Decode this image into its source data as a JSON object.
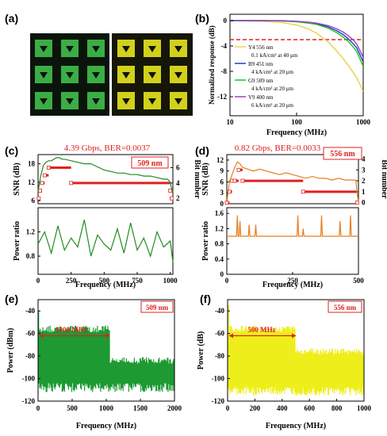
{
  "chart_data": [
    {
      "panel": "(a)",
      "type": "image",
      "left_image_color": "#3fbf4a",
      "right_image_color": "#e6e61e"
    },
    {
      "panel": "(b)",
      "type": "line",
      "xlabel": "Frequency (MHz)",
      "ylabel": "Normalized response (dB)",
      "xscale": "log",
      "xlim": [
        10,
        1000
      ],
      "ylim": [
        -15,
        1
      ],
      "x_ticks": [
        10,
        100,
        1000
      ],
      "y_ticks": [
        0,
        -4,
        -8,
        -12
      ],
      "reference_line_db": -3,
      "reference_color": "#e02020",
      "x": [
        10,
        30,
        60,
        100,
        150,
        200,
        300,
        400,
        500,
        600,
        700,
        800,
        1000
      ],
      "series": [
        {
          "name": "Y4 556 nm",
          "sub": "0.1 kA/cm² at 40 μm",
          "color": "#e8d24a",
          "values": [
            0,
            -0.1,
            -0.3,
            -0.7,
            -1.3,
            -2.0,
            -3.4,
            -4.8,
            -6.0,
            -7.1,
            -8.1,
            -9.0,
            -11.2
          ]
        },
        {
          "name": "B9 451 nm",
          "sub": "4 kA/cm² at 20 μm",
          "color": "#1f3fbf",
          "values": [
            0,
            0,
            -0.05,
            -0.15,
            -0.3,
            -0.5,
            -1.0,
            -1.6,
            -2.2,
            -2.9,
            -3.6,
            -4.3,
            -6.5
          ]
        },
        {
          "name": "G9 509 nm",
          "sub": "4 kA/cm² at 20 μm",
          "color": "#22c022",
          "values": [
            0,
            0,
            -0.05,
            -0.2,
            -0.4,
            -0.6,
            -1.2,
            -1.9,
            -2.6,
            -3.3,
            -4.1,
            -4.9,
            -7.2
          ]
        },
        {
          "name": "V9 400 nm",
          "sub": "6 kA/cm² at 20 μm",
          "color": "#9a3fd0",
          "values": [
            0,
            0,
            0,
            -0.1,
            -0.25,
            -0.4,
            -0.8,
            -1.3,
            -1.8,
            -2.4,
            -3.0,
            -3.7,
            -5.8
          ]
        }
      ]
    },
    {
      "panel": "(c)",
      "type": "line",
      "title": "4.39 Gbps, BER=0.0037",
      "badge": "509 nm",
      "color": "#228B22",
      "xlabel": "Frequency (MHz)",
      "ylabel_top": "SNR (dB)",
      "ylabel_right": "Bit number",
      "ylabel_bottom": "Power ratio",
      "xlim": [
        0,
        1020
      ],
      "snr_ylim": [
        5,
        21
      ],
      "bit_ylim": [
        1.3,
        7.7
      ],
      "power_ylim": [
        0.5,
        1.6
      ],
      "x_ticks": [
        0,
        250,
        500,
        750,
        1000
      ],
      "snr_ticks": [
        6,
        12,
        18
      ],
      "bit_ticks": [
        2,
        4,
        6
      ],
      "power_ticks": [
        0.8,
        1.2
      ],
      "snr_x": [
        0,
        20,
        40,
        60,
        80,
        100,
        120,
        140,
        160,
        180,
        200,
        250,
        300,
        350,
        400,
        450,
        500,
        550,
        600,
        650,
        700,
        750,
        800,
        850,
        900,
        950,
        980,
        1000,
        1010,
        1020
      ],
      "snr": [
        9,
        14,
        17.5,
        18.5,
        19,
        19,
        19.5,
        20,
        20,
        19.5,
        19.5,
        19,
        18.5,
        18,
        18,
        17,
        16,
        15.5,
        15,
        15,
        14.5,
        14.5,
        14,
        14,
        13.5,
        13,
        13,
        12,
        10,
        9
      ],
      "bit_segments": [
        {
          "x0": 5,
          "x1": 15,
          "bits": 2
        },
        {
          "x0": 15,
          "x1": 30,
          "bits": 3
        },
        {
          "x0": 30,
          "x1": 50,
          "bits": 4
        },
        {
          "x0": 50,
          "x1": 80,
          "bits": 5
        },
        {
          "x0": 80,
          "x1": 250,
          "bits": 6
        },
        {
          "x0": 250,
          "x1": 1000,
          "bits": 4
        },
        {
          "x0": 1000,
          "x1": 1010,
          "bits": 3
        },
        {
          "x0": 1010,
          "x1": 1020,
          "bits": 2
        }
      ],
      "power_x": [
        0,
        50,
        100,
        150,
        200,
        250,
        300,
        350,
        400,
        450,
        500,
        550,
        600,
        650,
        700,
        750,
        800,
        850,
        900,
        950,
        1000,
        1020
      ],
      "power": [
        1.0,
        1.2,
        0.85,
        1.3,
        0.9,
        1.1,
        0.95,
        1.4,
        0.8,
        1.15,
        1.0,
        0.9,
        1.25,
        0.85,
        1.35,
        0.9,
        1.1,
        0.8,
        1.2,
        0.95,
        1.05,
        0.7
      ]
    },
    {
      "panel": "(d)",
      "type": "line",
      "title": "0.82 Gbps, BER=0.0033",
      "badge": "556 nm",
      "color": "#e87d1e",
      "xlabel": "Frequency (MHz)",
      "ylabel_top": "SNR (dB)",
      "ylabel_right": "Bit number",
      "ylabel_bottom": "Power ratio",
      "xlim": [
        0,
        500
      ],
      "snr_ylim": [
        0,
        13.5
      ],
      "bit_ylim": [
        -0.1,
        4.4
      ],
      "power_ylim": [
        0,
        1.75
      ],
      "x_ticks": [
        0,
        250,
        500
      ],
      "snr_ticks": [
        0,
        3,
        6,
        9,
        12
      ],
      "bit_ticks": [
        0,
        1,
        2,
        3,
        4
      ],
      "power_ticks": [
        0,
        0.4,
        0.8,
        1.2,
        1.6
      ],
      "snr_x": [
        0,
        10,
        20,
        30,
        40,
        50,
        60,
        80,
        100,
        125,
        150,
        175,
        200,
        225,
        250,
        275,
        300,
        325,
        350,
        375,
        400,
        425,
        450,
        475,
        490,
        495,
        500
      ],
      "snr": [
        0.5,
        6,
        8,
        10,
        11.5,
        11,
        10,
        9.5,
        9,
        9.5,
        9,
        8.5,
        8,
        8.5,
        8,
        7.5,
        7,
        7.5,
        7,
        7,
        6.5,
        7,
        6.5,
        6.5,
        6.5,
        3,
        0.5
      ],
      "bit_segments": [
        {
          "x0": 0,
          "x1": 10,
          "bits": 0
        },
        {
          "x0": 10,
          "x1": 20,
          "bits": 1
        },
        {
          "x0": 20,
          "x1": 30,
          "bits": 2
        },
        {
          "x0": 30,
          "x1": 45,
          "bits": 2
        },
        {
          "x0": 45,
          "x1": 60,
          "bits": 3
        },
        {
          "x0": 60,
          "x1": 290,
          "bits": 2
        },
        {
          "x0": 290,
          "x1": 495,
          "bits": 1
        },
        {
          "x0": 495,
          "x1": 500,
          "bits": 0
        }
      ],
      "power_spikes": [
        {
          "x": 40,
          "v": 1.55
        },
        {
          "x": 50,
          "v": 1.4
        },
        {
          "x": 85,
          "v": 1.3
        },
        {
          "x": 110,
          "v": 1.3
        },
        {
          "x": 270,
          "v": 1.55
        },
        {
          "x": 290,
          "v": 1.2
        },
        {
          "x": 360,
          "v": 1.55
        },
        {
          "x": 430,
          "v": 1.4
        },
        {
          "x": 470,
          "v": 1.55
        }
      ],
      "power_baseline": 1.0
    },
    {
      "panel": "(e)",
      "type": "area",
      "badge": "509 nm",
      "annotation": "1000 MHz",
      "color": "#1e9a32",
      "xlabel": "Frequency (MHz)",
      "ylabel": "Power (dBm)",
      "xlim": [
        0,
        2000
      ],
      "ylim": [
        -120,
        -30
      ],
      "x_ticks": [
        0,
        500,
        1000,
        1500,
        2000
      ],
      "y_ticks": [
        -40,
        -60,
        -80,
        -100,
        -120
      ],
      "band_edges": [
        0,
        1050,
        2000
      ],
      "band_levels": [
        -62,
        -90
      ],
      "peak_level": -40,
      "floor_level": -112
    },
    {
      "panel": "(f)",
      "type": "area",
      "badge": "556 nm",
      "annotation": "500 MHz",
      "color": "#eeee1a",
      "xlabel": "Frequency (MHz)",
      "ylabel": "Power (dB)",
      "xlim": [
        0,
        1000
      ],
      "ylim": [
        -120,
        -30
      ],
      "x_ticks": [
        0,
        200,
        400,
        600,
        800,
        1000
      ],
      "y_ticks": [
        -40,
        -60,
        -80,
        -100,
        -120
      ],
      "band_edges": [
        0,
        500,
        1000
      ],
      "band_levels": [
        -62,
        -82
      ],
      "peak_level": -35,
      "floor_level": -115
    }
  ]
}
